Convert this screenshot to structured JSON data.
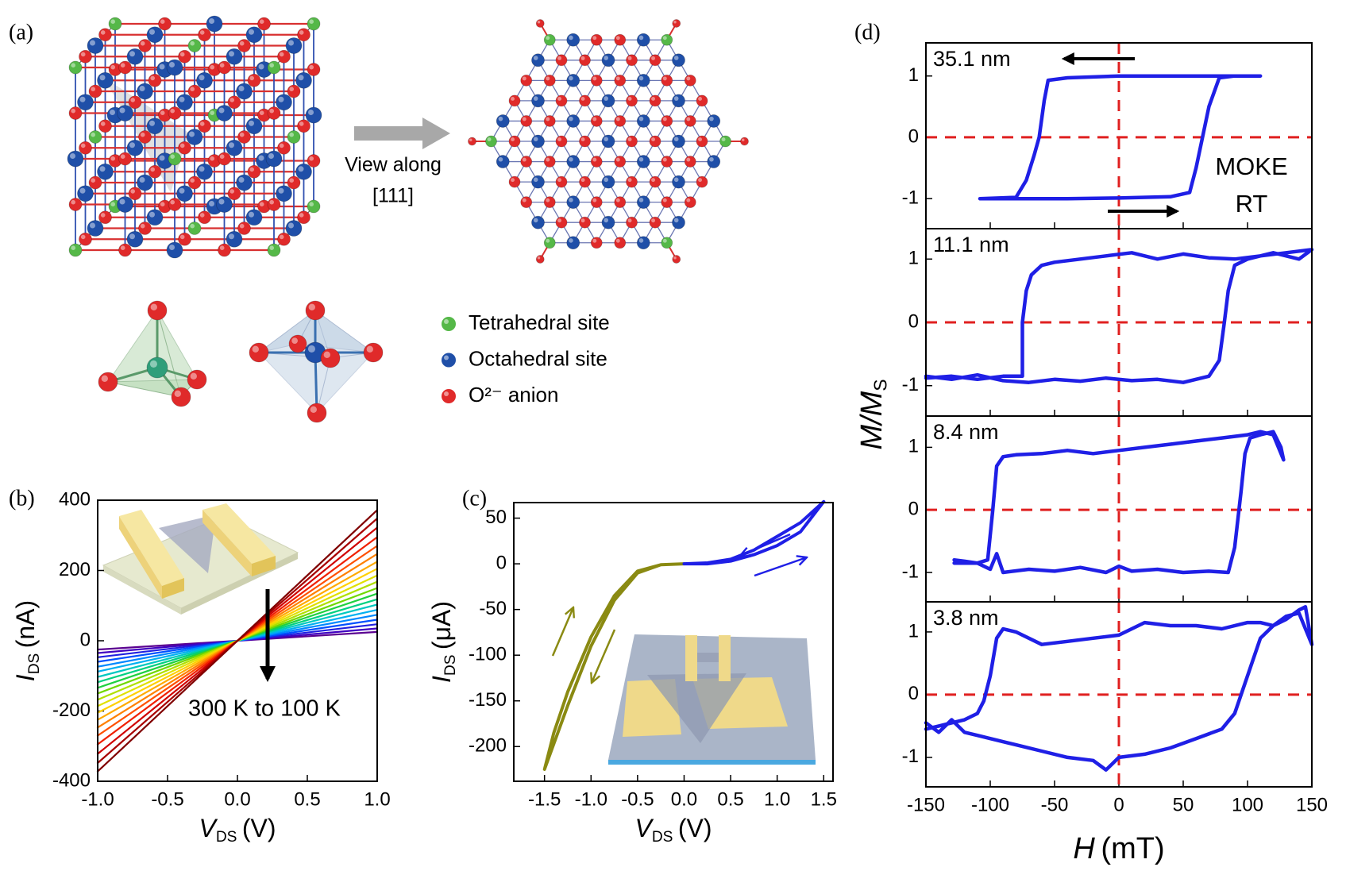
{
  "diagram": {
    "panel_label": "(a)",
    "arrow_text": [
      "View along",
      "[111]"
    ],
    "legend": [
      {
        "label": "Tetrahedral site",
        "color": "#55b848"
      },
      {
        "label": "Octahedral site",
        "color": "#1f4fa8"
      },
      {
        "label": "O²⁻ anion",
        "color": "#e02a2a"
      }
    ]
  },
  "chart_data": [
    {
      "type": "line",
      "panel_label": "(b)",
      "xlabel": {
        "text": "V",
        "subscript": "DS",
        "unit": "(V)"
      },
      "ylabel": {
        "text": "I",
        "subscript": "DS",
        "unit": "(nA)"
      },
      "annotation": "300 K to 100 K",
      "x": [
        -1,
        1
      ],
      "xlim": [
        -1,
        1
      ],
      "ylim": [
        -400,
        400
      ],
      "xticks": [
        {
          "value": -1,
          "label": "-1.0"
        },
        -0.5,
        {
          "value": 0,
          "label": "0.0"
        },
        0.5,
        {
          "value": 1,
          "label": "1.0"
        }
      ],
      "yticks": [
        -400,
        -200,
        0,
        200,
        400
      ],
      "series": [
        {
          "color": "#5a0090",
          "values": [
            -25,
            25
          ]
        },
        {
          "color": "#4000c0",
          "values": [
            -35,
            35
          ]
        },
        {
          "color": "#2020e0",
          "values": [
            -47,
            47
          ]
        },
        {
          "color": "#0050ff",
          "values": [
            -60,
            60
          ]
        },
        {
          "color": "#0088ff",
          "values": [
            -74,
            74
          ]
        },
        {
          "color": "#00b0f0",
          "values": [
            -88,
            88
          ]
        },
        {
          "color": "#00c8c0",
          "values": [
            -103,
            103
          ]
        },
        {
          "color": "#00d080",
          "values": [
            -118,
            118
          ]
        },
        {
          "color": "#20d040",
          "values": [
            -134,
            134
          ]
        },
        {
          "color": "#70d800",
          "values": [
            -150,
            150
          ]
        },
        {
          "color": "#b0e000",
          "values": [
            -168,
            168
          ]
        },
        {
          "color": "#e0e000",
          "values": [
            -186,
            186
          ]
        },
        {
          "color": "#ffd000",
          "values": [
            -205,
            205
          ]
        },
        {
          "color": "#ffaa00",
          "values": [
            -225,
            225
          ]
        },
        {
          "color": "#ff8000",
          "values": [
            -247,
            247
          ]
        },
        {
          "color": "#ff5000",
          "values": [
            -270,
            270
          ]
        },
        {
          "color": "#f02000",
          "values": [
            -295,
            295
          ]
        },
        {
          "color": "#d00000",
          "values": [
            -322,
            322
          ]
        },
        {
          "color": "#a80000",
          "values": [
            -348,
            348
          ]
        },
        {
          "color": "#800000",
          "values": [
            -372,
            372
          ]
        }
      ]
    },
    {
      "type": "line",
      "panel_label": "(c)",
      "xlabel": {
        "text": "V",
        "subscript": "DS",
        "unit": "(V)"
      },
      "ylabel": {
        "text": "I",
        "subscript": "DS",
        "unit": "(μA)"
      },
      "xlim": [
        -1.83,
        1.6
      ],
      "ylim": [
        -238,
        67
      ],
      "xticks": [
        -1.5,
        {
          "value": -1,
          "label": "-1.0"
        },
        -0.5,
        {
          "value": 0,
          "label": "0.0"
        },
        0.5,
        {
          "value": 1,
          "label": "1.0"
        },
        1.5
      ],
      "yticks": [
        -200,
        -150,
        -100,
        -50,
        0,
        50
      ],
      "series": [
        {
          "color": "#8a8a12",
          "x": [
            0,
            -0.25,
            -0.5,
            -0.75,
            -1.0,
            -1.25,
            -1.5,
            -1.4,
            -1.25,
            -1.0,
            -0.75,
            -0.5,
            -0.25,
            0
          ],
          "values": [
            0,
            -1,
            -10,
            -40,
            -90,
            -155,
            -225,
            -185,
            -140,
            -80,
            -35,
            -8,
            -1,
            0
          ]
        },
        {
          "color": "#1f1fe6",
          "x": [
            0,
            0.25,
            0.5,
            0.75,
            1.0,
            1.25,
            1.5,
            1.25,
            1.0,
            0.75,
            0.5,
            0.25,
            0
          ],
          "values": [
            0,
            0,
            3,
            10,
            20,
            35,
            68,
            45,
            30,
            15,
            5,
            1,
            0
          ]
        }
      ]
    },
    {
      "type": "line",
      "panel_label": "(d)",
      "xlabel": {
        "text": "H",
        "unit": "(mT)"
      },
      "ylabel": {
        "text": "M/M",
        "subscript": "S"
      },
      "annotation": [
        "MOKE",
        "RT"
      ],
      "xlim": [
        -150,
        150
      ],
      "xticks": [
        -150,
        -100,
        -50,
        0,
        50,
        100,
        150
      ],
      "panels": [
        {
          "label": "35.1 nm",
          "ylim": [
            -1.49,
            1.54
          ],
          "yticks": [
            -1,
            0,
            1
          ],
          "series": [
            {
              "color": "#1f1fe6",
              "x": [
                -108,
                -80,
                -40,
                0,
                40,
                55,
                60,
                65,
                70,
                78,
                90,
                110,
                80,
                40,
                0,
                -40,
                -55,
                -58,
                -62,
                -66,
                -72,
                -80,
                -108
              ],
              "values": [
                -1.0,
                -1.0,
                -1.0,
                -0.99,
                -0.97,
                -0.9,
                -0.5,
                0,
                0.5,
                0.97,
                1.0,
                1.0,
                1.0,
                1.0,
                1.0,
                0.97,
                0.93,
                0.6,
                0,
                -0.3,
                -0.7,
                -0.98,
                -1.0
              ]
            }
          ]
        },
        {
          "label": "11.1 nm",
          "ylim": [
            -1.48,
            1.48
          ],
          "yticks": [
            -1,
            0,
            1
          ],
          "series": [
            {
              "color": "#1f1fe6",
              "x": [
                -150,
                -130,
                -110,
                -90,
                -70,
                -50,
                -30,
                -10,
                10,
                30,
                50,
                70,
                78,
                82,
                85,
                90,
                100,
                120,
                140,
                150,
                130,
                110,
                90,
                70,
                50,
                30,
                10,
                -10,
                -30,
                -50,
                -60,
                -68,
                -72,
                -75,
                -75,
                -90,
                -110,
                -130,
                -150
              ],
              "values": [
                -0.85,
                -0.9,
                -0.83,
                -0.92,
                -0.95,
                -0.9,
                -0.93,
                -0.88,
                -0.92,
                -0.9,
                -0.95,
                -0.85,
                -0.6,
                0,
                0.5,
                0.9,
                1.0,
                1.1,
                1.0,
                1.15,
                1.1,
                1.05,
                1.0,
                1.02,
                1.08,
                1.0,
                1.1,
                1.05,
                1.0,
                0.95,
                0.9,
                0.75,
                0.5,
                0,
                -0.85,
                -0.85,
                -0.9,
                -0.85,
                -0.88
              ]
            }
          ]
        },
        {
          "label": "8.4 nm",
          "ylim": [
            -1.47,
            1.5
          ],
          "yticks": [
            -1,
            0,
            1
          ],
          "series": [
            {
              "color": "#1f1fe6",
              "x": [
                -128,
                -120,
                -110,
                -100,
                -95,
                -90,
                -70,
                -50,
                -30,
                -10,
                0,
                10,
                30,
                50,
                70,
                85,
                90,
                95,
                98,
                102,
                110,
                120,
                126,
                128,
                120,
                110,
                100,
                80,
                60,
                40,
                20,
                0,
                -20,
                -40,
                -60,
                -80,
                -90,
                -95,
                -98,
                -102,
                -110,
                -128
              ],
              "values": [
                -0.8,
                -0.82,
                -0.85,
                -0.95,
                -0.7,
                -1.0,
                -0.95,
                -0.98,
                -0.92,
                -1.0,
                -0.9,
                -0.98,
                -0.95,
                -1.0,
                -0.98,
                -1.0,
                -0.6,
                0.3,
                0.9,
                1.15,
                1.2,
                1.25,
                1.0,
                0.8,
                1.2,
                1.25,
                1.2,
                1.15,
                1.1,
                1.05,
                1.0,
                0.95,
                0.9,
                0.95,
                0.9,
                0.88,
                0.85,
                0.7,
                0,
                -0.8,
                -0.85,
                -0.85
              ]
            }
          ]
        },
        {
          "label": "3.8 nm",
          "ylim": [
            -1.47,
            1.48
          ],
          "yticks": [
            -1,
            0,
            1
          ],
          "series": [
            {
              "color": "#1f1fe6",
              "x": [
                -150,
                -140,
                -130,
                -120,
                -110,
                -100,
                -80,
                -60,
                -40,
                -20,
                -10,
                0,
                20,
                40,
                60,
                80,
                90,
                95,
                100,
                110,
                120,
                130,
                140,
                145,
                150,
                140,
                130,
                120,
                110,
                100,
                80,
                60,
                40,
                20,
                0,
                -20,
                -40,
                -60,
                -80,
                -90,
                -95,
                -100,
                -105,
                -110,
                -120,
                -130,
                -140,
                -150
              ],
              "values": [
                -0.45,
                -0.6,
                -0.4,
                -0.6,
                -0.65,
                -0.7,
                -0.8,
                -0.9,
                -1.0,
                -1.05,
                -1.2,
                -1.0,
                -0.95,
                -0.85,
                -0.7,
                -0.55,
                -0.3,
                0,
                0.3,
                0.9,
                1.1,
                1.2,
                1.35,
                1.4,
                0.8,
                1.3,
                1.25,
                1.1,
                1.15,
                1.15,
                1.05,
                1.1,
                1.1,
                1.15,
                0.95,
                0.9,
                0.85,
                0.8,
                1.0,
                1.05,
                0.9,
                0.3,
                -0.1,
                -0.3,
                -0.4,
                -0.45,
                -0.5,
                -0.55
              ]
            }
          ]
        }
      ]
    }
  ]
}
